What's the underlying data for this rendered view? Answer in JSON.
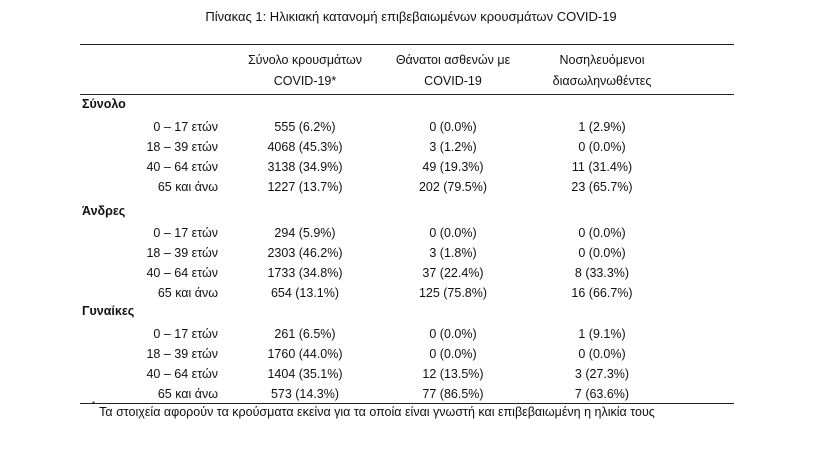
{
  "title": "Πίνακας 1: Ηλικιακή κατανομή επιβεβαιωμένων κρουσμάτων COVID-19",
  "columns": [
    {
      "line1": "Σύνολο κρουσμάτων",
      "line2": "COVID-19*"
    },
    {
      "line1": "Θάνατοι ασθενών με",
      "line2": "COVID-19"
    },
    {
      "line1": "Νοσηλευόμενοι",
      "line2": "διασωληνωθέντες"
    }
  ],
  "groups": [
    {
      "name": "Σύνολο",
      "rows": [
        {
          "age": "0 – 17 ετών",
          "cases": "555 (6.2%)",
          "deaths": "0 (0.0%)",
          "icu": "1 (2.9%)"
        },
        {
          "age": "18 – 39 ετών",
          "cases": "4068 (45.3%)",
          "deaths": "3 (1.2%)",
          "icu": "0 (0.0%)"
        },
        {
          "age": "40 – 64 ετών",
          "cases": "3138 (34.9%)",
          "deaths": "49 (19.3%)",
          "icu": "11 (31.4%)"
        },
        {
          "age": "65 και άνω",
          "cases": "1227 (13.7%)",
          "deaths": "202 (79.5%)",
          "icu": "23 (65.7%)"
        }
      ]
    },
    {
      "name": "Άνδρες",
      "rows": [
        {
          "age": "0 – 17 ετών",
          "cases": "294 (5.9%)",
          "deaths": "0 (0.0%)",
          "icu": "0 (0.0%)"
        },
        {
          "age": "18 – 39 ετών",
          "cases": "2303 (46.2%)",
          "deaths": "3 (1.8%)",
          "icu": "0 (0.0%)"
        },
        {
          "age": "40 – 64 ετών",
          "cases": "1733 (34.8%)",
          "deaths": "37 (22.4%)",
          "icu": "8 (33.3%)"
        },
        {
          "age": "65 και άνω",
          "cases": "654 (13.1%)",
          "deaths": "125 (75.8%)",
          "icu": "16 (66.7%)"
        }
      ]
    },
    {
      "name": "Γυναίκες",
      "rows": [
        {
          "age": "0 – 17 ετών",
          "cases": "261 (6.5%)",
          "deaths": "0 (0.0%)",
          "icu": "1 (9.1%)"
        },
        {
          "age": "18 – 39 ετών",
          "cases": "1760 (44.0%)",
          "deaths": "0 (0.0%)",
          "icu": "0 (0.0%)"
        },
        {
          "age": "40 – 64 ετών",
          "cases": "1404 (35.1%)",
          "deaths": "12 (13.5%)",
          "icu": "3 (27.3%)"
        },
        {
          "age": "65 και άνω",
          "cases": "573 (14.3%)",
          "deaths": "77 (86.5%)",
          "icu": "7 (63.6%)"
        }
      ]
    }
  ],
  "footnote": {
    "marker": "*",
    "text": "Τα στοιχεία αφορούν τα κρούσματα εκείνα για τα οποία είναι γνωστή και επιβεβαιωμένη η ηλικία τους"
  }
}
